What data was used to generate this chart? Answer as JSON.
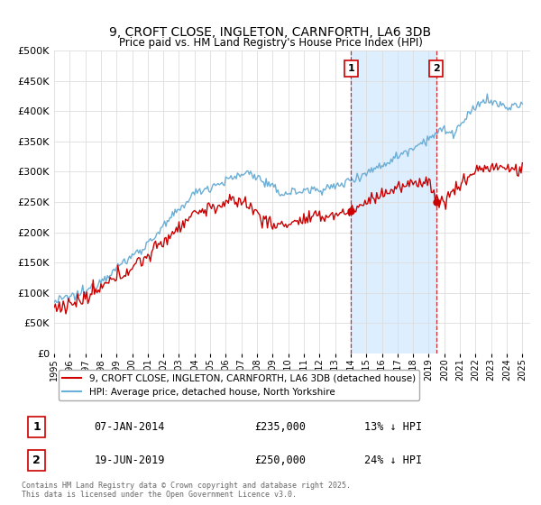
{
  "title": "9, CROFT CLOSE, INGLETON, CARNFORTH, LA6 3DB",
  "subtitle": "Price paid vs. HM Land Registry's House Price Index (HPI)",
  "ylabel_ticks": [
    "£0",
    "£50K",
    "£100K",
    "£150K",
    "£200K",
    "£250K",
    "£300K",
    "£350K",
    "£400K",
    "£450K",
    "£500K"
  ],
  "ytick_values": [
    0,
    50000,
    100000,
    150000,
    200000,
    250000,
    300000,
    350000,
    400000,
    450000,
    500000
  ],
  "ylim": [
    0,
    500000
  ],
  "xlim_start": 1995,
  "xlim_end": 2025.5,
  "hpi_color": "#6baed6",
  "price_color": "#cc0000",
  "vline_color": "#cc0000",
  "shade_color": "#ddeeff",
  "transaction1_date": 2014.03,
  "transaction2_date": 2019.47,
  "transaction1_price": 235000,
  "transaction2_price": 250000,
  "transaction1_label": "07-JAN-2014",
  "transaction2_label": "19-JUN-2019",
  "transaction1_hpi_pct": "13% ↓ HPI",
  "transaction2_hpi_pct": "24% ↓ HPI",
  "legend_property": "9, CROFT CLOSE, INGLETON, CARNFORTH, LA6 3DB (detached house)",
  "legend_hpi": "HPI: Average price, detached house, North Yorkshire",
  "footer": "Contains HM Land Registry data © Crown copyright and database right 2025.\nThis data is licensed under the Open Government Licence v3.0.",
  "background_color": "#ffffff",
  "grid_color": "#dddddd",
  "figsize": [
    6.0,
    5.6
  ],
  "dpi": 100
}
